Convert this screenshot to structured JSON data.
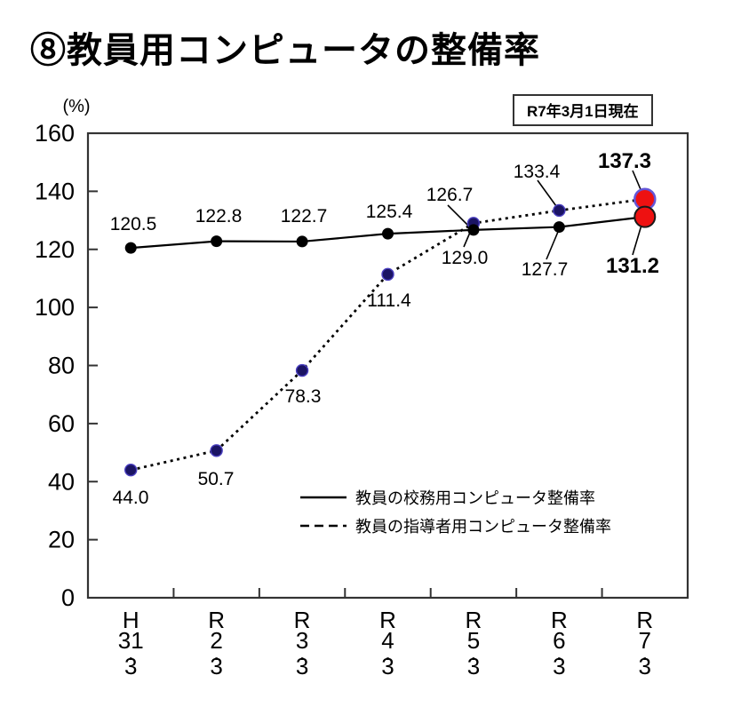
{
  "page": {
    "title": "⑧教員用コンピュータの整備率",
    "date_note": "R7年3月1日現在"
  },
  "colors": {
    "line_black": "#000000",
    "marker_navy": "#1b1464",
    "marker_navy_ring": "#4a3fc0",
    "highlight_red": "#ee1111",
    "highlight_ring_purple": "#6456d8",
    "highlight_ring_black": "#1a1a1a",
    "frame_gray": "#333333",
    "text_black": "#000000"
  },
  "chart_data": {
    "type": "line",
    "title": "⑧教員用コンピュータの整備率",
    "ylabel": "(%)",
    "ylim": [
      0,
      160
    ],
    "ytick_step": 20,
    "grid": false,
    "legend_position": "inside-bottom-right",
    "categories": [
      "H31.3",
      "R2.3",
      "R3.3",
      "R4.3",
      "R5.3",
      "R6.3",
      "R7.3"
    ],
    "series": [
      {
        "name": "教員の校務用コンピュータ整備率",
        "style": "solid",
        "values": [
          120.5,
          122.8,
          122.7,
          125.4,
          126.7,
          127.7,
          131.2
        ],
        "final_value_highlighted": true
      },
      {
        "name": "教員の指導者用コンピュータ整備率",
        "style": "dotted",
        "values": [
          44.0,
          50.7,
          78.3,
          111.4,
          129.0,
          133.4,
          137.3
        ],
        "final_value_highlighted": true
      }
    ]
  }
}
